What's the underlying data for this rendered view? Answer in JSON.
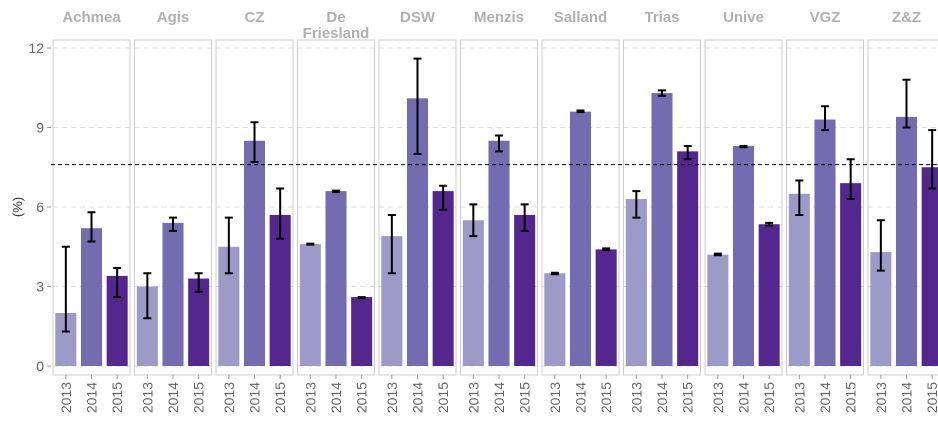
{
  "chart_data": {
    "type": "bar",
    "y_label": "(%)",
    "ylim": [
      0,
      12
    ],
    "yticks": [
      0,
      3,
      6,
      9,
      12
    ],
    "grid": true,
    "reference_line": 7.6,
    "categories": [
      "2013",
      "2014",
      "2015"
    ],
    "colors": [
      "#9e9ac8",
      "#756bb1",
      "#54278f"
    ],
    "facets": [
      {
        "title": "Achmea",
        "values": [
          2.0,
          5.2,
          3.4
        ],
        "lower": [
          1.3,
          4.7,
          2.6
        ],
        "upper": [
          4.5,
          5.8,
          3.7
        ]
      },
      {
        "title": "Agis",
        "values": [
          3.0,
          5.4,
          3.3
        ],
        "lower": [
          1.8,
          5.1,
          2.8
        ],
        "upper": [
          3.5,
          5.6,
          3.5
        ]
      },
      {
        "title": "CZ",
        "values": [
          4.5,
          8.5,
          5.7
        ],
        "lower": [
          3.5,
          7.7,
          4.8
        ],
        "upper": [
          5.6,
          9.2,
          6.7
        ]
      },
      {
        "title": "De Friesland",
        "values": [
          4.6,
          6.6,
          2.6
        ],
        "lower": [
          4.58,
          6.56,
          2.56
        ],
        "upper": [
          4.62,
          6.62,
          2.6
        ]
      },
      {
        "title": "DSW",
        "values": [
          4.9,
          10.1,
          6.6
        ],
        "lower": [
          3.5,
          8.0,
          5.9
        ],
        "upper": [
          5.7,
          11.6,
          6.8
        ]
      },
      {
        "title": "Menzis",
        "values": [
          5.5,
          8.5,
          5.7
        ],
        "lower": [
          4.9,
          8.1,
          5.1
        ],
        "upper": [
          6.1,
          8.7,
          6.1
        ]
      },
      {
        "title": "Salland",
        "values": [
          3.5,
          9.6,
          4.4
        ],
        "lower": [
          3.46,
          9.58,
          4.38
        ],
        "upper": [
          3.52,
          9.64,
          4.44
        ]
      },
      {
        "title": "Trias",
        "values": [
          6.3,
          10.3,
          8.1
        ],
        "lower": [
          5.6,
          10.2,
          7.8
        ],
        "upper": [
          6.6,
          10.4,
          8.3
        ]
      },
      {
        "title": "Unive",
        "values": [
          4.2,
          8.3,
          5.35
        ],
        "lower": [
          4.18,
          8.26,
          5.3
        ],
        "upper": [
          4.24,
          8.3,
          5.4
        ]
      },
      {
        "title": "VGZ",
        "values": [
          6.5,
          9.3,
          6.9
        ],
        "lower": [
          5.7,
          8.9,
          6.3
        ],
        "upper": [
          7.0,
          9.8,
          7.8
        ]
      },
      {
        "title": "Z&Z",
        "values": [
          4.3,
          9.4,
          7.5
        ],
        "lower": [
          3.6,
          9.0,
          6.7
        ],
        "upper": [
          5.5,
          10.8,
          8.9
        ]
      }
    ]
  }
}
